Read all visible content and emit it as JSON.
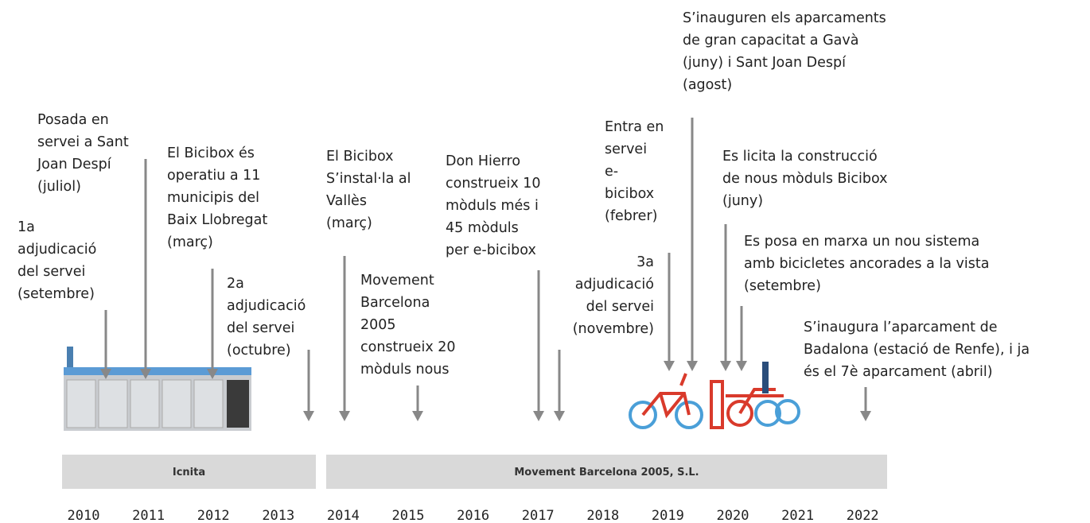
{
  "events": [
    {
      "lines": [
        "1a",
        "adjudicació",
        "del servei",
        "(setembre)"
      ]
    },
    {
      "lines": [
        "Posada en",
        "servei a Sant",
        "Joan Despí",
        "(juliol)"
      ]
    },
    {
      "lines": [
        "El Bicibox és",
        "operatiu a 11",
        "municipis del",
        "Baix Llobregat",
        "(març)"
      ]
    },
    {
      "lines": [
        "2a",
        "adjudicació",
        "del servei",
        "(octubre)"
      ]
    },
    {
      "lines": [
        "El Bicibox",
        "S’instal·la al",
        "Vallès",
        "(març)"
      ]
    },
    {
      "lines": [
        "Movement",
        "Barcelona",
        "2005",
        "construeix 20",
        "mòduls nous"
      ]
    },
    {
      "lines": [
        "Don Hierro",
        "construeix 10",
        "mòduls més i",
        "45 mòduls",
        "per e-bicibox"
      ]
    },
    {
      "lines": [
        "3a",
        "adjudicació",
        "del servei",
        "(novembre)"
      ]
    },
    {
      "lines": [
        "Entra en",
        "servei",
        "e-",
        "bicibox",
        "(febrer)"
      ]
    },
    {
      "lines": [
        "S’inauguren els aparcaments",
        "de gran capacitat a Gavà",
        "(juny) i Sant Joan Despí",
        "(agost)"
      ]
    },
    {
      "lines": [
        "Es licita la construcció",
        "de nous mòduls Bicibox",
        "(juny)"
      ]
    },
    {
      "lines": [
        "Es posa en marxa un nou sistema",
        "amb bicicletes ancorades a la vista",
        "(setembre)"
      ]
    },
    {
      "lines": [
        "S’inaugura l’aparcament de",
        "Badalona (estació de Renfe), i ja",
        "és el 7è aparcament (abril)"
      ]
    }
  ],
  "periods": [
    "Icnita",
    "Movement Barcelona 2005, S.L."
  ],
  "years": [
    "2010",
    "2011",
    "2012",
    "2013",
    "2014",
    "2015",
    "2016",
    "2017",
    "2018",
    "2019",
    "2020",
    "2021",
    "2022"
  ]
}
